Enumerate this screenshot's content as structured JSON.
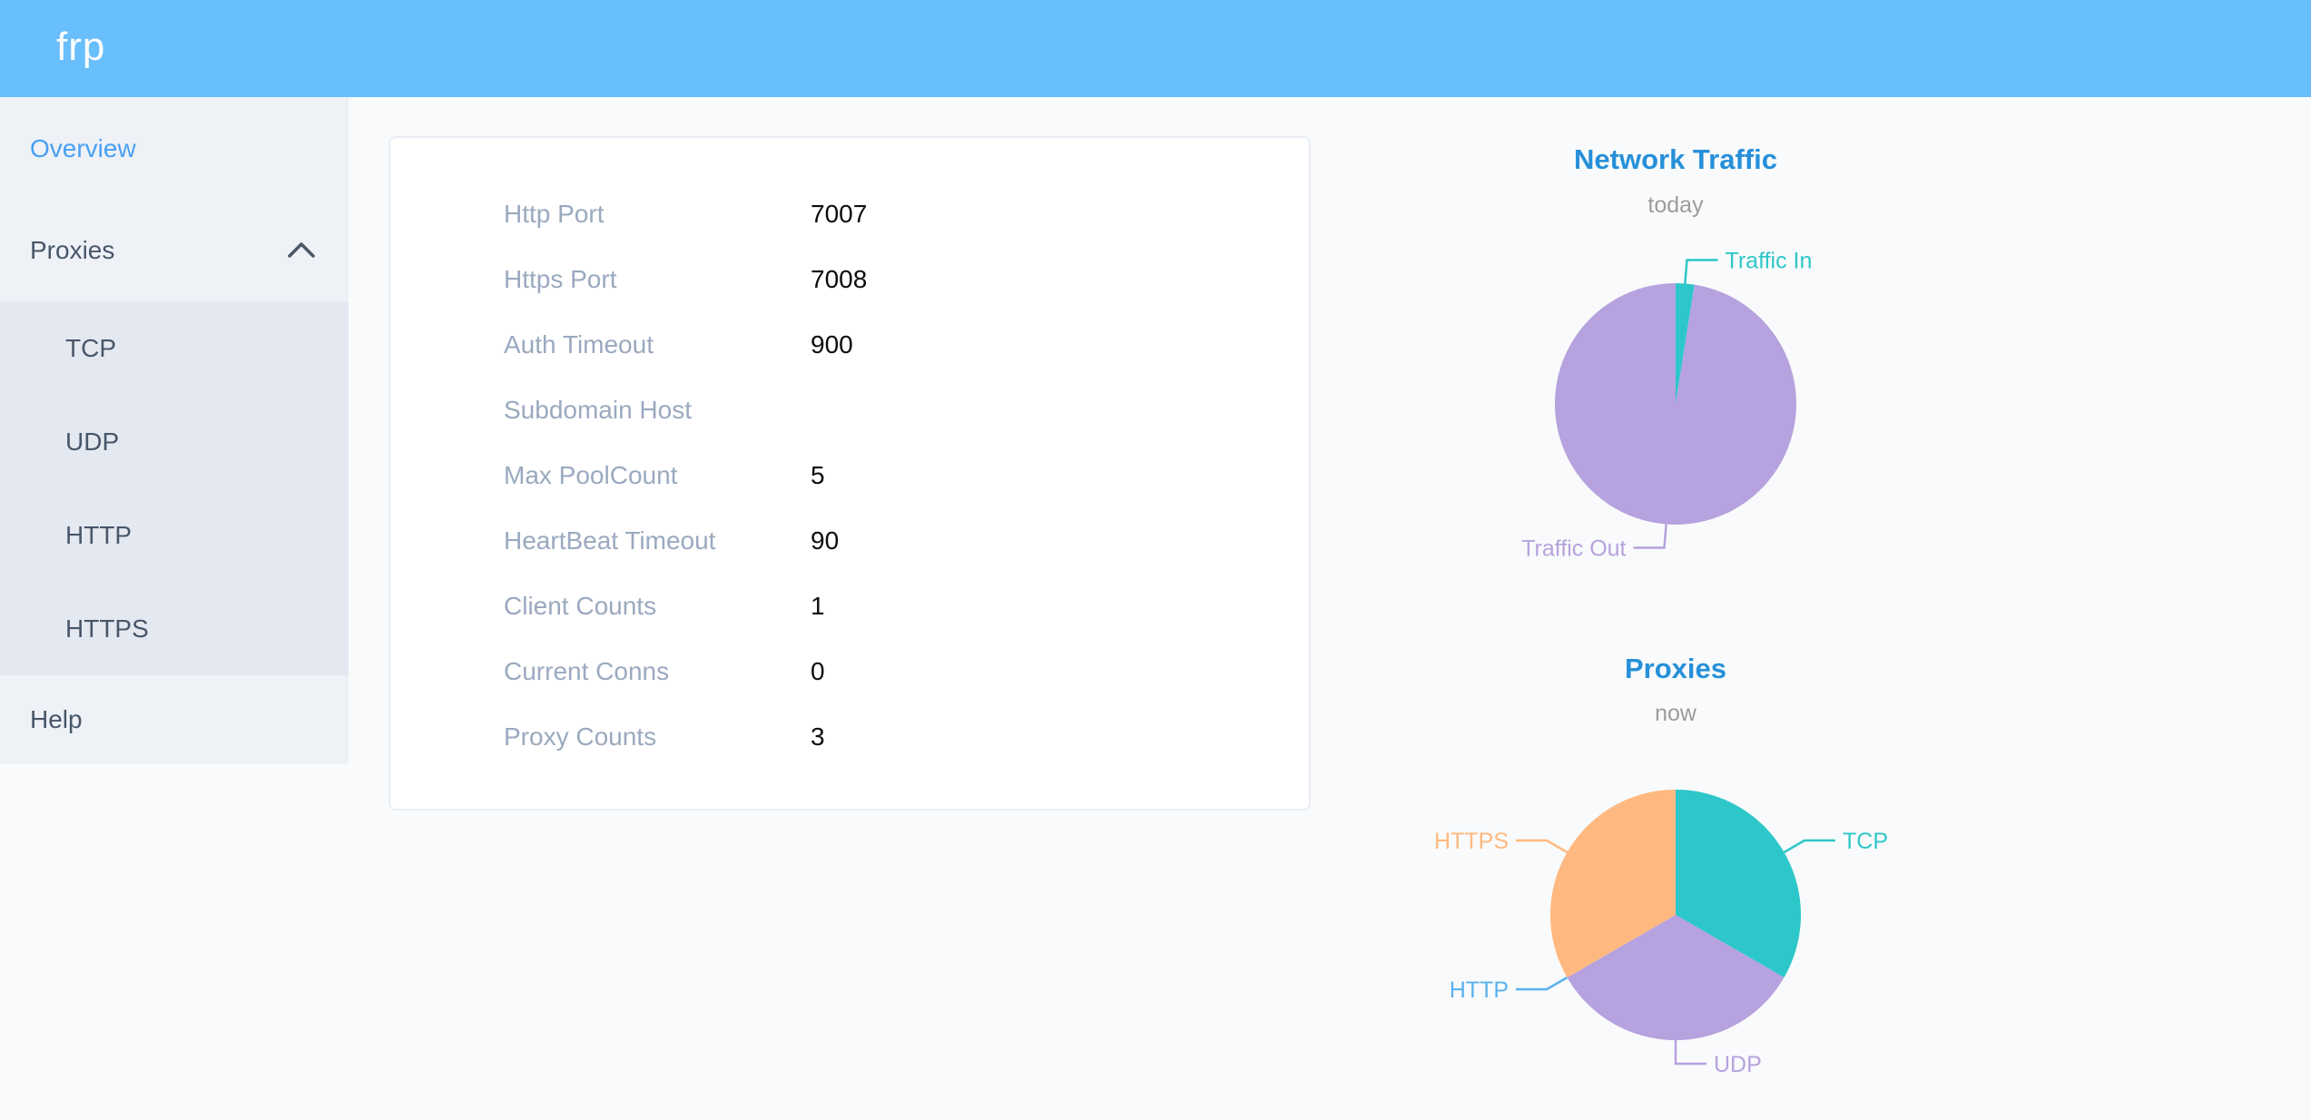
{
  "header": {
    "logo_text": "frp",
    "background": "#69befc"
  },
  "sidebar": {
    "overview": {
      "label": "Overview",
      "active": true
    },
    "proxies": {
      "label": "Proxies",
      "expanded": true
    },
    "proxy_types": [
      "TCP",
      "UDP",
      "HTTP",
      "HTTPS"
    ],
    "help": {
      "label": "Help"
    },
    "text_color": "#48576a",
    "active_color": "#48a0f5"
  },
  "server_info": {
    "rows": [
      {
        "label": "Http Port",
        "value": "7007"
      },
      {
        "label": "Https Port",
        "value": "7008"
      },
      {
        "label": "Auth Timeout",
        "value": "900"
      },
      {
        "label": "Subdomain Host",
        "value": ""
      },
      {
        "label": "Max PoolCount",
        "value": "5"
      },
      {
        "label": "HeartBeat Timeout",
        "value": "90"
      },
      {
        "label": "Client Counts",
        "value": "1"
      },
      {
        "label": "Current Conns",
        "value": "0"
      },
      {
        "label": "Proxy Counts",
        "value": "3"
      }
    ]
  },
  "chart_data": [
    {
      "type": "pie",
      "title": "Network Traffic",
      "subtitle": "today",
      "legend": "none",
      "label_position": "outside",
      "value_unit": "percent_share_estimated",
      "series": [
        {
          "name": "Traffic In",
          "value": 2.5,
          "color": "#2ec7c9"
        },
        {
          "name": "Traffic Out",
          "value": 97.5,
          "color": "#b6a2de"
        }
      ]
    },
    {
      "type": "pie",
      "title": "Proxies",
      "subtitle": "now",
      "legend": "none",
      "label_position": "outside",
      "value_unit": "proxy_count",
      "series": [
        {
          "name": "TCP",
          "value": 1,
          "color": "#2ec7c9"
        },
        {
          "name": "UDP",
          "value": 1,
          "color": "#b6a2de"
        },
        {
          "name": "HTTP",
          "value": 0,
          "color": "#5ab1ef"
        },
        {
          "name": "HTTPS",
          "value": 1,
          "color": "#ffb980"
        }
      ]
    }
  ],
  "colors": {
    "title_blue": "#2690d9",
    "subtitle_gray": "#9c9c9c"
  }
}
